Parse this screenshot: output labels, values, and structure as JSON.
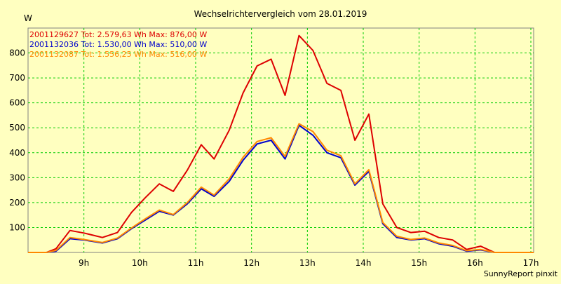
{
  "chart_data": {
    "type": "line",
    "title": "Wechselrichtervergleich vom 28.01.2019",
    "ylabel": "W",
    "xlabel": "",
    "xlim": [
      8.0,
      17.05
    ],
    "ylim": [
      0,
      900
    ],
    "x_ticks": [
      9,
      10,
      11,
      12,
      13,
      14,
      15,
      16,
      17
    ],
    "x_tick_labels": [
      "9h",
      "10h",
      "11h",
      "12h",
      "13h",
      "14h",
      "15h",
      "16h",
      "17h"
    ],
    "y_ticks": [
      100,
      200,
      300,
      400,
      500,
      600,
      700,
      800
    ],
    "y_tick_labels": [
      "100",
      "200",
      "300",
      "400",
      "500",
      "600",
      "700",
      "800"
    ],
    "grid": true,
    "legend_position": "top-left",
    "credit": "SunnyReport pinxit",
    "background_color": "#ffffc0",
    "grid_color": "#00cc00",
    "x": [
      8.0,
      8.33,
      8.5,
      8.75,
      9.0,
      9.33,
      9.6,
      9.85,
      10.1,
      10.35,
      10.6,
      10.85,
      11.1,
      11.33,
      11.6,
      11.85,
      12.1,
      12.35,
      12.6,
      12.85,
      13.1,
      13.35,
      13.6,
      13.85,
      14.1,
      14.35,
      14.6,
      14.85,
      15.1,
      15.35,
      15.6,
      15.85,
      16.1,
      16.35,
      16.6,
      17.05
    ],
    "series": [
      {
        "name": "2001129627",
        "legend_text": "2001129627 Tot: 2.579,63 Wh Max: 876,00 W",
        "color": "#dd0000",
        "values": [
          0,
          0,
          15,
          88,
          78,
          60,
          80,
          160,
          220,
          275,
          245,
          330,
          432,
          375,
          490,
          640,
          748,
          775,
          630,
          870,
          810,
          678,
          650,
          450,
          555,
          195,
          100,
          80,
          85,
          60,
          50,
          12,
          25,
          0,
          0,
          0
        ]
      },
      {
        "name": "2001132036",
        "legend_text": "2001132036 Tot: 1.530,00 Wh Max: 510,00 W",
        "color": "#0000cc",
        "values": [
          0,
          0,
          5,
          55,
          50,
          38,
          55,
          95,
          130,
          165,
          150,
          195,
          255,
          225,
          285,
          370,
          435,
          450,
          375,
          510,
          470,
          400,
          380,
          270,
          325,
          115,
          60,
          50,
          55,
          35,
          25,
          5,
          10,
          0,
          0,
          0
        ]
      },
      {
        "name": "2001132087",
        "legend_text": "2001132087 Tot: 1.556,25 Wh Max: 516,00 W",
        "color": "#ff8800",
        "values": [
          0,
          0,
          8,
          60,
          52,
          40,
          58,
          98,
          135,
          170,
          152,
          200,
          262,
          230,
          295,
          382,
          445,
          460,
          385,
          516,
          485,
          410,
          388,
          275,
          332,
          120,
          65,
          52,
          58,
          38,
          28,
          7,
          12,
          0,
          0,
          0
        ]
      }
    ]
  }
}
